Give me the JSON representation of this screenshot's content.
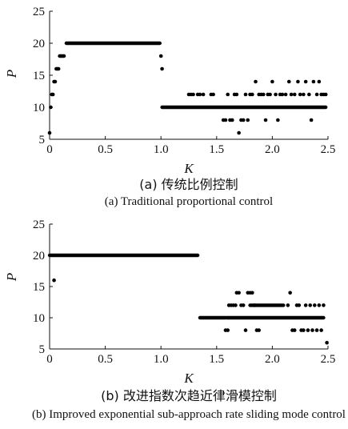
{
  "chart_data": [
    {
      "type": "scatter",
      "id": "a",
      "xlabel": "K",
      "ylabel": "P",
      "xlim": [
        0,
        2.5
      ],
      "ylim": [
        5,
        25
      ],
      "xticks": [
        "0",
        "0.5",
        "1.0",
        "1.5",
        "2.0",
        "2.5"
      ],
      "yticks": [
        "5",
        "10",
        "15",
        "20",
        "25"
      ],
      "caption_cn": "(a) 传统比例控制",
      "caption_en": "(a) Traditional proportional control",
      "runs": [
        {
          "x0": 0.15,
          "x1": 0.99,
          "y": 20
        },
        {
          "x0": 1.01,
          "x1": 2.48,
          "y": 10
        },
        {
          "x0": 0.09,
          "x1": 0.13,
          "y": 18
        }
      ],
      "points": [
        {
          "x": 0.0,
          "y": 6
        },
        {
          "x": 0.01,
          "y": 10
        },
        {
          "x": 0.02,
          "y": 12
        },
        {
          "x": 0.03,
          "y": 12
        },
        {
          "x": 0.04,
          "y": 14
        },
        {
          "x": 0.05,
          "y": 14
        },
        {
          "x": 0.06,
          "y": 16
        },
        {
          "x": 0.07,
          "y": 16
        },
        {
          "x": 0.08,
          "y": 16
        },
        {
          "x": 1.0,
          "y": 18
        },
        {
          "x": 1.01,
          "y": 16
        },
        {
          "x": 1.25,
          "y": 12
        },
        {
          "x": 1.27,
          "y": 12
        },
        {
          "x": 1.29,
          "y": 12
        },
        {
          "x": 1.33,
          "y": 12
        },
        {
          "x": 1.35,
          "y": 12
        },
        {
          "x": 1.38,
          "y": 12
        },
        {
          "x": 1.45,
          "y": 12
        },
        {
          "x": 1.47,
          "y": 12
        },
        {
          "x": 1.56,
          "y": 8
        },
        {
          "x": 1.58,
          "y": 8
        },
        {
          "x": 1.6,
          "y": 12
        },
        {
          "x": 1.62,
          "y": 8
        },
        {
          "x": 1.64,
          "y": 8
        },
        {
          "x": 1.66,
          "y": 12
        },
        {
          "x": 1.68,
          "y": 12
        },
        {
          "x": 1.7,
          "y": 6
        },
        {
          "x": 1.72,
          "y": 8
        },
        {
          "x": 1.74,
          "y": 8
        },
        {
          "x": 1.76,
          "y": 12
        },
        {
          "x": 1.78,
          "y": 8
        },
        {
          "x": 1.8,
          "y": 12
        },
        {
          "x": 1.82,
          "y": 12
        },
        {
          "x": 1.85,
          "y": 14
        },
        {
          "x": 1.88,
          "y": 12
        },
        {
          "x": 1.9,
          "y": 12
        },
        {
          "x": 1.92,
          "y": 12
        },
        {
          "x": 1.94,
          "y": 8
        },
        {
          "x": 1.96,
          "y": 12
        },
        {
          "x": 1.98,
          "y": 12
        },
        {
          "x": 2.0,
          "y": 14
        },
        {
          "x": 2.03,
          "y": 12
        },
        {
          "x": 2.05,
          "y": 8
        },
        {
          "x": 2.07,
          "y": 12
        },
        {
          "x": 2.09,
          "y": 12
        },
        {
          "x": 2.12,
          "y": 12
        },
        {
          "x": 2.15,
          "y": 14
        },
        {
          "x": 2.17,
          "y": 12
        },
        {
          "x": 2.2,
          "y": 12
        },
        {
          "x": 2.23,
          "y": 14
        },
        {
          "x": 2.25,
          "y": 12
        },
        {
          "x": 2.28,
          "y": 12
        },
        {
          "x": 2.3,
          "y": 14
        },
        {
          "x": 2.33,
          "y": 12
        },
        {
          "x": 2.35,
          "y": 8
        },
        {
          "x": 2.37,
          "y": 14
        },
        {
          "x": 2.4,
          "y": 12
        },
        {
          "x": 2.42,
          "y": 14
        },
        {
          "x": 2.44,
          "y": 12
        },
        {
          "x": 2.46,
          "y": 12
        },
        {
          "x": 2.48,
          "y": 12
        }
      ]
    },
    {
      "type": "scatter",
      "id": "b",
      "xlabel": "K",
      "ylabel": "P",
      "xlim": [
        0,
        2.5
      ],
      "ylim": [
        5,
        25
      ],
      "xticks": [
        "0",
        "0.5",
        "1.0",
        "1.5",
        "2.0",
        "2.5"
      ],
      "yticks": [
        "5",
        "10",
        "15",
        "20",
        "25"
      ],
      "caption_cn": "(b) 改进指数次趋近律滑模控制",
      "caption_en": "(b) Improved exponential sub-approach rate sliding mode control",
      "runs": [
        {
          "x0": 0.0,
          "x1": 1.33,
          "y": 20
        },
        {
          "x0": 1.35,
          "x1": 1.58,
          "y": 10
        },
        {
          "x0": 1.59,
          "x1": 2.46,
          "y": 10
        },
        {
          "x0": 1.8,
          "x1": 2.1,
          "y": 12
        }
      ],
      "points": [
        {
          "x": 0.04,
          "y": 16
        },
        {
          "x": 1.58,
          "y": 8
        },
        {
          "x": 1.6,
          "y": 8
        },
        {
          "x": 1.61,
          "y": 12
        },
        {
          "x": 1.63,
          "y": 12
        },
        {
          "x": 1.65,
          "y": 12
        },
        {
          "x": 1.67,
          "y": 12
        },
        {
          "x": 1.68,
          "y": 14
        },
        {
          "x": 1.7,
          "y": 14
        },
        {
          "x": 1.72,
          "y": 12
        },
        {
          "x": 1.74,
          "y": 12
        },
        {
          "x": 1.76,
          "y": 8
        },
        {
          "x": 1.78,
          "y": 14
        },
        {
          "x": 1.8,
          "y": 14
        },
        {
          "x": 1.82,
          "y": 14
        },
        {
          "x": 1.84,
          "y": 12
        },
        {
          "x": 1.86,
          "y": 8
        },
        {
          "x": 1.88,
          "y": 8
        },
        {
          "x": 2.14,
          "y": 12
        },
        {
          "x": 2.16,
          "y": 14
        },
        {
          "x": 2.18,
          "y": 8
        },
        {
          "x": 2.2,
          "y": 8
        },
        {
          "x": 2.22,
          "y": 12
        },
        {
          "x": 2.24,
          "y": 12
        },
        {
          "x": 2.26,
          "y": 8
        },
        {
          "x": 2.28,
          "y": 8
        },
        {
          "x": 2.3,
          "y": 12
        },
        {
          "x": 2.32,
          "y": 8
        },
        {
          "x": 2.34,
          "y": 12
        },
        {
          "x": 2.36,
          "y": 8
        },
        {
          "x": 2.38,
          "y": 12
        },
        {
          "x": 2.4,
          "y": 8
        },
        {
          "x": 2.42,
          "y": 12
        },
        {
          "x": 2.44,
          "y": 8
        },
        {
          "x": 2.46,
          "y": 12
        },
        {
          "x": 2.49,
          "y": 6
        }
      ]
    }
  ]
}
